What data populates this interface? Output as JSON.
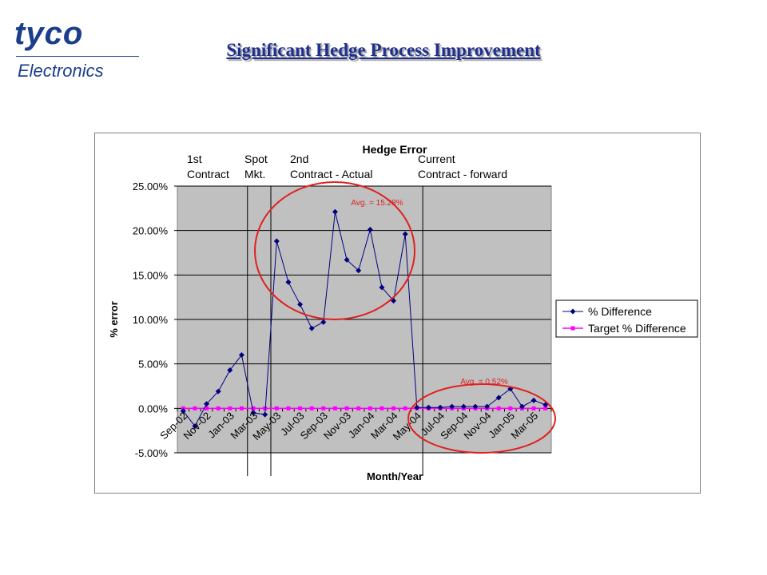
{
  "logo": {
    "brand": "tyco",
    "sub": "Electronics"
  },
  "slide_title": "Significant Hedge Process Improvement",
  "colors": {
    "series1": "#000080",
    "series2": "#ff00ff",
    "plot_bg": "#c0c0c0",
    "ellipse": "#e02020",
    "title": "#1f2f8f"
  },
  "chart_data": {
    "type": "line",
    "title": "Hedge Error",
    "xlabel": "Month/Year",
    "ylabel": "% error",
    "ylim": [
      -0.05,
      0.25
    ],
    "yticks": [
      "-5.00%",
      "0.00%",
      "5.00%",
      "10.00%",
      "15.00%",
      "20.00%",
      "25.00%"
    ],
    "x": [
      "Sep-02",
      "Oct-02",
      "Nov-02",
      "Dec-02",
      "Jan-03",
      "Feb-03",
      "Mar-03",
      "Apr-03",
      "May-03",
      "Jun-03",
      "Jul-03",
      "Aug-03",
      "Sep-03",
      "Oct-03",
      "Nov-03",
      "Dec-03",
      "Jan-04",
      "Feb-04",
      "Mar-04",
      "Apr-04",
      "May-04",
      "Jun-04",
      "Jul-04",
      "Aug-04",
      "Sep-04",
      "Oct-04",
      "Nov-04",
      "Dec-04",
      "Jan-05",
      "Feb-05",
      "Mar-05",
      "Apr-05"
    ],
    "xtick_labels": [
      "Sep-02",
      "Nov-02",
      "Jan-03",
      "Mar-03",
      "May-03",
      "Jul-03",
      "Sep-03",
      "Nov-03",
      "Jan-04",
      "Mar-04",
      "May-04",
      "Jul-04",
      "Sep-04",
      "Nov-04",
      "Jan-05",
      "Mar-05"
    ],
    "series": [
      {
        "name": "% Difference",
        "values": [
          -0.003,
          -0.02,
          0.005,
          0.019,
          0.043,
          0.06,
          -0.005,
          -0.007,
          0.188,
          0.142,
          0.117,
          0.09,
          0.097,
          0.221,
          0.167,
          0.155,
          0.201,
          0.136,
          0.121,
          0.196,
          0.001,
          0.001,
          0.001,
          0.002,
          0.002,
          0.002,
          0.002,
          0.012,
          0.022,
          0.002,
          0.009,
          0.004
        ]
      },
      {
        "name": "Target % Difference",
        "values": [
          0,
          0,
          0,
          0,
          0,
          0,
          0,
          0,
          0,
          0,
          0,
          0,
          0,
          0,
          0,
          0,
          0,
          0,
          0,
          0,
          0,
          0,
          0,
          0,
          0,
          0,
          0,
          0,
          0,
          0,
          0,
          0
        ]
      }
    ],
    "phases": [
      {
        "line1": "1st",
        "line2": "Contract"
      },
      {
        "line1": "Spot",
        "line2": "Mkt."
      },
      {
        "line1": "2nd",
        "line2": "Contract - Actual"
      },
      {
        "line1": "Current",
        "line2": "Contract - forward"
      }
    ],
    "annotations": [
      "Avg. = 15.28%",
      "Avg. = 0.52%"
    ],
    "legend_position": "right",
    "grid": true
  }
}
